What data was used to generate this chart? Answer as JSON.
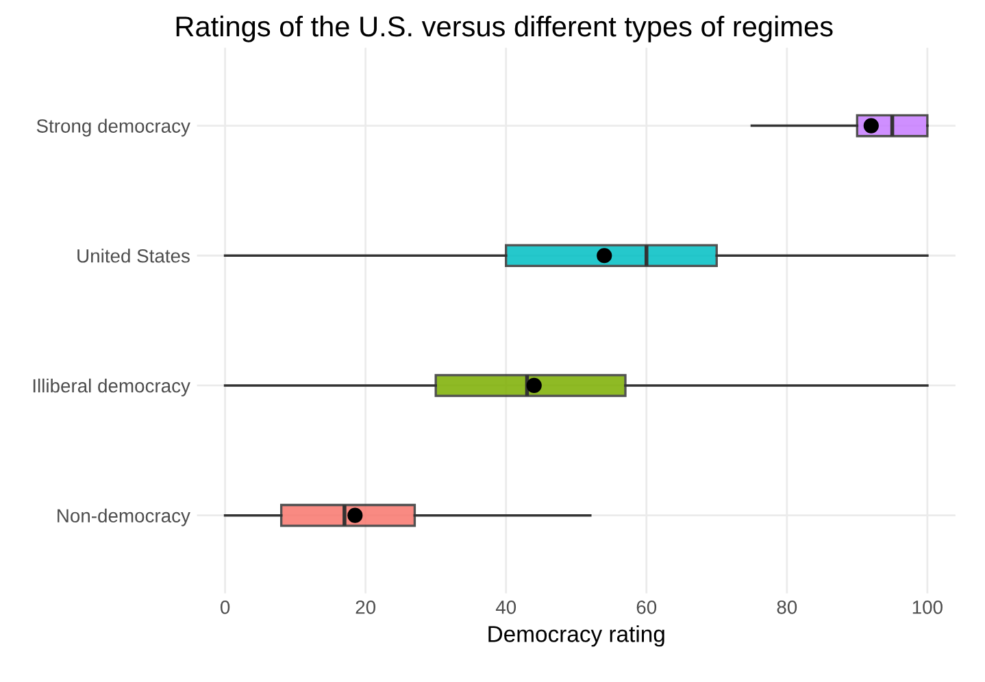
{
  "chart_data": {
    "type": "box",
    "orientation": "horizontal",
    "title": "Ratings of the U.S. versus different types of regimes",
    "xlabel": "Democracy rating",
    "categories": [
      "Strong democracy",
      "United States",
      "Illiberal democracy",
      "Non-democracy"
    ],
    "colors": [
      "#c77cff",
      "#00bfc4",
      "#7cae00",
      "#f8766d"
    ],
    "boxes": [
      {
        "low": 75,
        "q1": 90,
        "median": 95,
        "q3": 100,
        "high": 100,
        "mean": 92
      },
      {
        "low": 0,
        "q1": 40,
        "median": 60,
        "q3": 70,
        "high": 100,
        "mean": 54
      },
      {
        "low": 0,
        "q1": 30,
        "median": 43,
        "q3": 57,
        "high": 100,
        "mean": 44
      },
      {
        "low": 0,
        "q1": 8,
        "median": 17,
        "q3": 27,
        "high": 52,
        "mean": 18.5
      }
    ],
    "xlim": [
      -4,
      104
    ],
    "xticks": [
      0,
      20,
      40,
      60,
      80,
      100
    ],
    "grid": true
  }
}
